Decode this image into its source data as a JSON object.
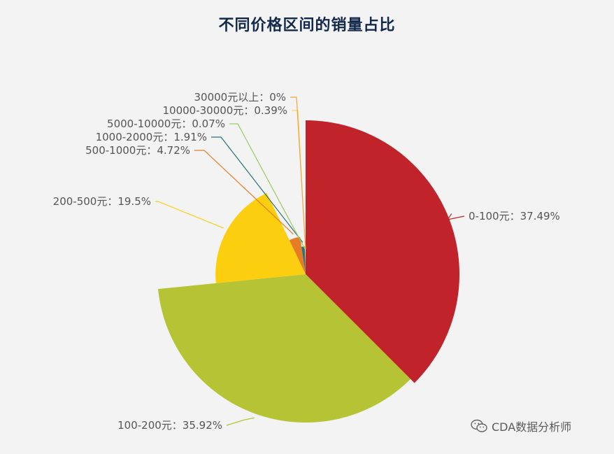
{
  "chart_data": {
    "type": "pie",
    "title": "不同价格区间的销量占比",
    "rose": true,
    "slices": [
      {
        "label": "0-100元：37.49%",
        "value": 37.49,
        "color": "#c1232b"
      },
      {
        "label": "100-200元：35.92%",
        "value": 35.92,
        "color": "#b5c334"
      },
      {
        "label": "200-500元：19.5%",
        "value": 19.5,
        "color": "#fcce10"
      },
      {
        "label": "500-1000元：4.72%",
        "value": 4.72,
        "color": "#e87c25"
      },
      {
        "label": "1000-2000元：1.91%",
        "value": 1.91,
        "color": "#27727b"
      },
      {
        "label": "5000-10000元：0.07%",
        "value": 0.07,
        "color": "#9bca63"
      },
      {
        "label": "10000-30000元：0.39%",
        "value": 0.39,
        "color": "#fad860"
      },
      {
        "label": "30000元以上：0%",
        "value": 0,
        "color": "#f3a43b"
      }
    ]
  },
  "watermark": {
    "text": "CDA数据分析师",
    "icon": "wechat-icon"
  }
}
